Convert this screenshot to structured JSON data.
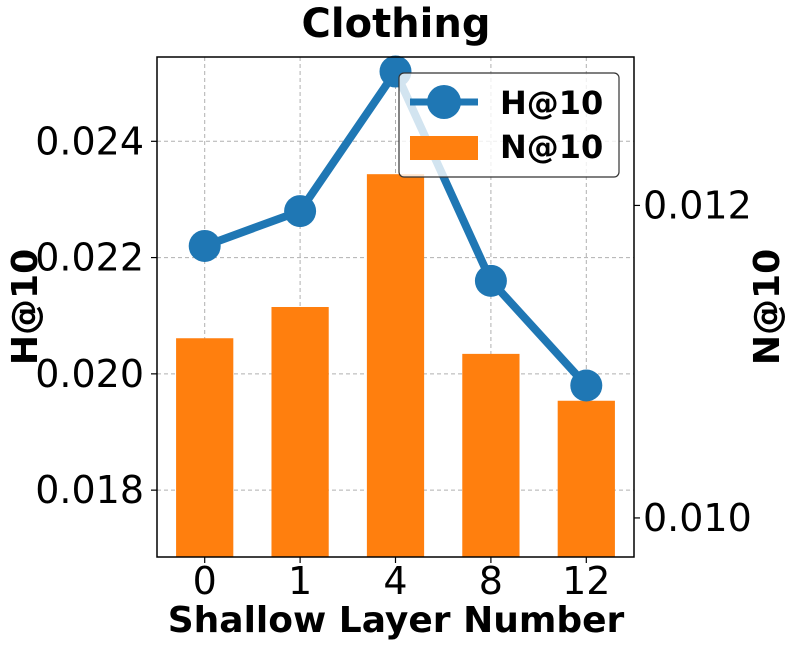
{
  "chart_data": {
    "type": "bar+line",
    "title": "Clothing",
    "xlabel": "Shallow Layer Number",
    "ylabel_left": "H@10",
    "ylabel_right": "N@10",
    "categories": [
      "0",
      "1",
      "4",
      "8",
      "12"
    ],
    "series": [
      {
        "name": "H@10",
        "type": "line",
        "axis": "left",
        "color": "#1f77b4",
        "values": [
          0.0222,
          0.0228,
          0.0252,
          0.0216,
          0.0198
        ]
      },
      {
        "name": "N@10",
        "type": "bar",
        "axis": "right",
        "color": "#ff7f0e",
        "values": [
          0.01115,
          0.01135,
          0.0122,
          0.01105,
          0.01075
        ]
      }
    ],
    "ylim_left": [
      0.01685,
      0.02545
    ],
    "ylim_right": [
      0.00975,
      0.01295
    ],
    "yticks_left": [
      "0.018",
      "0.020",
      "0.022",
      "0.024"
    ],
    "yticks_right": [
      "0.010",
      "0.012"
    ],
    "grid": true,
    "legend": "top-right"
  }
}
